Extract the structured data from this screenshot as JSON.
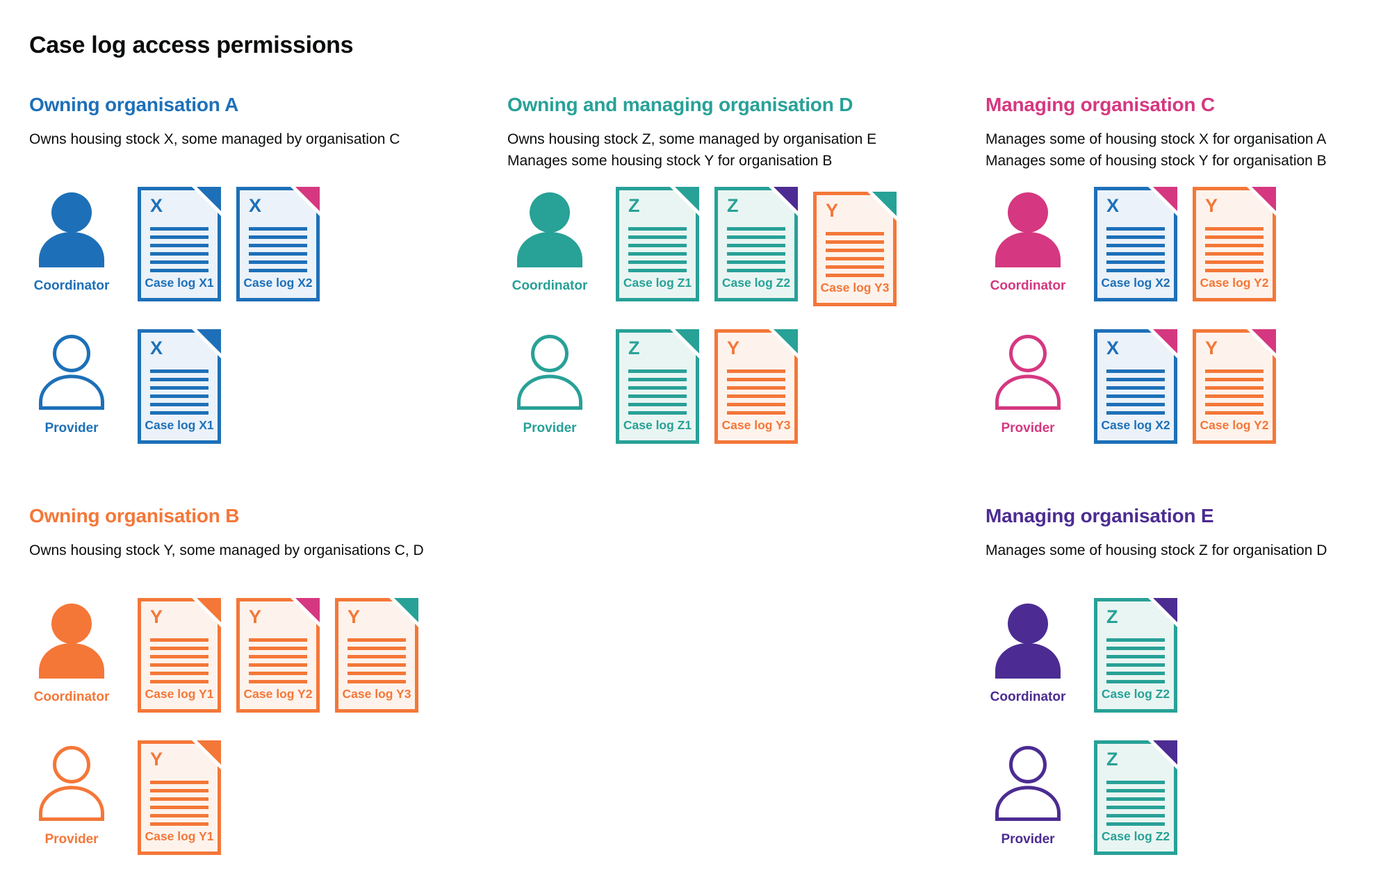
{
  "page": {
    "title": "Case log access permissions"
  },
  "colors": {
    "blue": {
      "main": "#1d70b8",
      "fill": "#ebf2f9"
    },
    "teal": {
      "main": "#28a197",
      "fill": "#e9f5f2"
    },
    "orange": {
      "main": "#f47738",
      "fill": "#fdf3ec"
    },
    "pink": {
      "main": "#d53880",
      "fill": "#fbeef4"
    },
    "purple": {
      "main": "#4c2c92",
      "fill": "#efecf6"
    }
  },
  "sections": [
    {
      "area": "a",
      "title": "Owning organisation A",
      "color": "blue",
      "description": [
        "Owns housing stock X, some managed by organisation C"
      ],
      "rows": [
        {
          "role": "Coordinator",
          "person_style": "filled",
          "docs": [
            {
              "letter": "X",
              "label": "Case log X1",
              "doc_color": "blue",
              "fold_color": "blue"
            },
            {
              "letter": "X",
              "label": "Case log X2",
              "doc_color": "blue",
              "fold_color": "pink"
            }
          ]
        },
        {
          "role": "Provider",
          "person_style": "outline",
          "docs": [
            {
              "letter": "X",
              "label": "Case log X1",
              "doc_color": "blue",
              "fold_color": "blue"
            }
          ]
        }
      ]
    },
    {
      "area": "d",
      "title": "Owning and managing organisation D",
      "color": "teal",
      "description": [
        "Owns housing stock Z, some managed by organisation E",
        "Manages some housing stock Y for organisation B"
      ],
      "rows": [
        {
          "role": "Coordinator",
          "person_style": "filled",
          "docs": [
            {
              "letter": "Z",
              "label": "Case log Z1",
              "doc_color": "teal",
              "fold_color": "teal"
            },
            {
              "letter": "Z",
              "label": "Case log Z2",
              "doc_color": "teal",
              "fold_color": "purple"
            },
            {
              "letter": "Y",
              "label": "Case log Y3",
              "doc_color": "orange",
              "fold_color": "teal",
              "offset_down": true
            }
          ]
        },
        {
          "role": "Provider",
          "person_style": "outline",
          "docs": [
            {
              "letter": "Z",
              "label": "Case log Z1",
              "doc_color": "teal",
              "fold_color": "teal"
            },
            {
              "letter": "Y",
              "label": "Case log Y3",
              "doc_color": "orange",
              "fold_color": "teal"
            }
          ]
        }
      ]
    },
    {
      "area": "c",
      "title": "Managing organisation C",
      "color": "pink",
      "description": [
        "Manages some of housing stock X for organisation A",
        "Manages some of housing stock Y for organisation B"
      ],
      "rows": [
        {
          "role": "Coordinator",
          "person_style": "filled",
          "docs": [
            {
              "letter": "X",
              "label": "Case log X2",
              "doc_color": "blue",
              "fold_color": "pink"
            },
            {
              "letter": "Y",
              "label": "Case log Y2",
              "doc_color": "orange",
              "fold_color": "pink"
            }
          ]
        },
        {
          "role": "Provider",
          "person_style": "outline",
          "docs": [
            {
              "letter": "X",
              "label": "Case log X2",
              "doc_color": "blue",
              "fold_color": "pink"
            },
            {
              "letter": "Y",
              "label": "Case log Y2",
              "doc_color": "orange",
              "fold_color": "pink"
            }
          ]
        }
      ]
    },
    {
      "area": "b",
      "title": "Owning organisation B",
      "color": "orange",
      "description": [
        "Owns housing stock Y, some managed by organisations C, D"
      ],
      "rows": [
        {
          "role": "Coordinator",
          "person_style": "filled",
          "docs": [
            {
              "letter": "Y",
              "label": "Case log Y1",
              "doc_color": "orange",
              "fold_color": "orange"
            },
            {
              "letter": "Y",
              "label": "Case log Y2",
              "doc_color": "orange",
              "fold_color": "pink"
            },
            {
              "letter": "Y",
              "label": "Case log Y3",
              "doc_color": "orange",
              "fold_color": "teal"
            }
          ]
        },
        {
          "role": "Provider",
          "person_style": "outline",
          "docs": [
            {
              "letter": "Y",
              "label": "Case log Y1",
              "doc_color": "orange",
              "fold_color": "orange"
            }
          ]
        }
      ]
    },
    {
      "area": "e",
      "title": "Managing organisation E",
      "color": "purple",
      "description": [
        "Manages some of housing stock Z for organisation D"
      ],
      "rows": [
        {
          "role": "Coordinator",
          "person_style": "filled",
          "docs": [
            {
              "letter": "Z",
              "label": "Case log Z2",
              "doc_color": "teal",
              "fold_color": "purple"
            }
          ]
        },
        {
          "role": "Provider",
          "person_style": "outline",
          "docs": [
            {
              "letter": "Z",
              "label": "Case log Z2",
              "doc_color": "teal",
              "fold_color": "purple"
            }
          ]
        }
      ]
    }
  ]
}
